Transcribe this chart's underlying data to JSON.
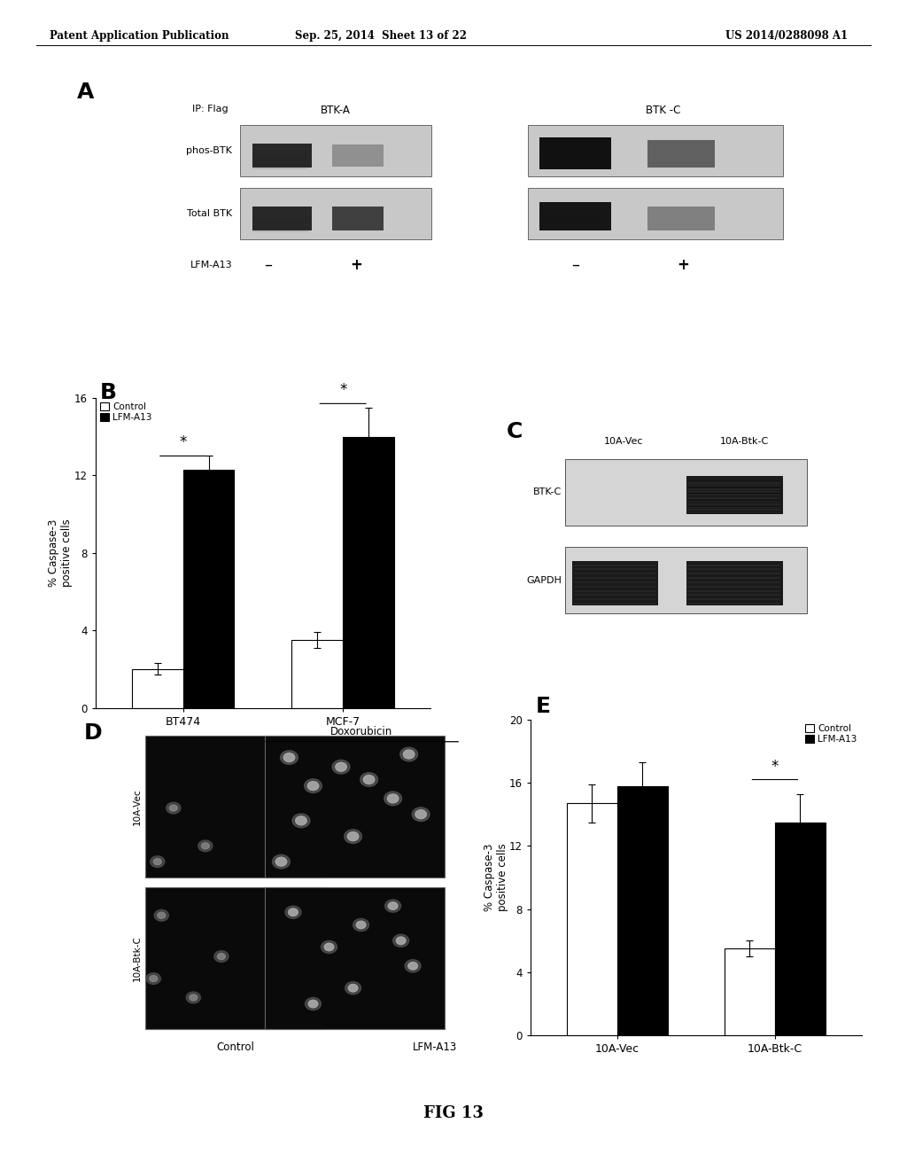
{
  "header_left": "Patent Application Publication",
  "header_center": "Sep. 25, 2014  Sheet 13 of 22",
  "header_right": "US 2014/0288098 A1",
  "footer": "FIG 13",
  "panel_A": {
    "label": "A",
    "ip_flag_text": "IP: Flag",
    "btk_a_text": "BTK-A",
    "btk_c_text": "BTK -C",
    "phos_btk_text": "phos-BTK",
    "total_btk_text": "Total BTK",
    "lfm_a13_text": "LFM-A13",
    "minus1": "–",
    "plus1": "+",
    "minus2": "–",
    "plus2": "+"
  },
  "panel_B": {
    "label": "B",
    "ylabel": "% Caspase-3\npositive cells",
    "legend_control": "Control",
    "legend_lfm": "LFM-A13",
    "categories": [
      "BT474",
      "MCF-7"
    ],
    "control_values": [
      2.0,
      3.5
    ],
    "lfm_values": [
      12.3,
      14.0
    ],
    "control_errors": [
      0.3,
      0.4
    ],
    "lfm_errors": [
      0.7,
      1.5
    ],
    "ylim": [
      0,
      16
    ],
    "yticks": [
      0,
      4,
      8,
      12,
      16
    ]
  },
  "panel_C": {
    "label": "C",
    "col1_text": "10A-Vec",
    "col2_text": "10A-Btk-C",
    "row1_text": "BTK-C",
    "row2_text": "GAPDH"
  },
  "panel_D": {
    "label": "D",
    "doxorubicin_text": "Doxorubicin",
    "row1_text": "10A-Vec",
    "row2_text": "10A-Btk-C",
    "col1_text": "Control",
    "col2_text": "LFM-A13"
  },
  "panel_E": {
    "label": "E",
    "ylabel": "% Caspase-3\npositive cells",
    "legend_control": "Control",
    "legend_lfm": "LFM-A13",
    "categories": [
      "10A-Vec",
      "10A-Btk-C"
    ],
    "control_values": [
      14.7,
      5.5
    ],
    "lfm_values": [
      15.8,
      13.5
    ],
    "control_errors": [
      1.2,
      0.5
    ],
    "lfm_errors": [
      1.5,
      1.8
    ],
    "ylim": [
      0,
      20
    ],
    "yticks": [
      0,
      4,
      8,
      12,
      16,
      20
    ]
  },
  "bar_width": 0.32,
  "colors": {
    "control": "white",
    "lfm": "black",
    "bar_edge": "black",
    "background": "white",
    "text": "black"
  }
}
